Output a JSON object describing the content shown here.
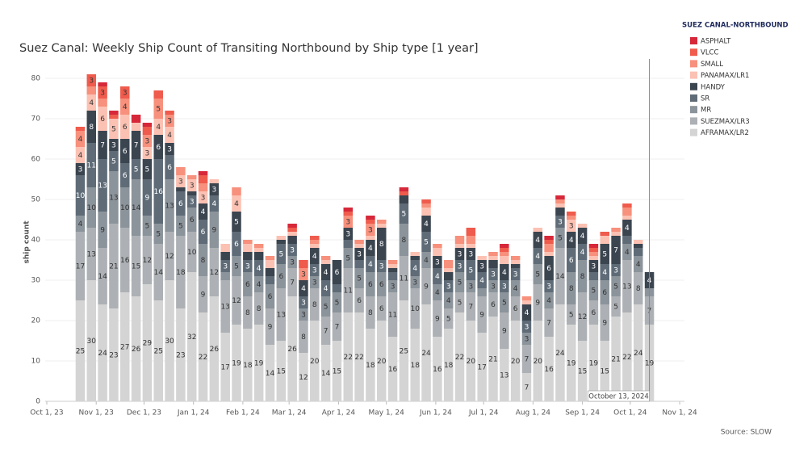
{
  "chart_data": {
    "type": "stacked_bar",
    "title": "Suez Canal: Weekly Ship Count of Transiting Northbound by Ship type [1 year]",
    "y_label": "ship count",
    "legend_title": "SUEZ CANAL-NORTHBOUND",
    "source": "Source: SLOW",
    "legend": "top-right",
    "grid": true,
    "x": [
      "2023-10-22",
      "2023-10-29",
      "2023-11-05",
      "2023-11-12",
      "2023-11-19",
      "2023-11-26",
      "2023-12-03",
      "2023-12-10",
      "2023-12-17",
      "2023-12-24",
      "2023-12-31",
      "2024-01-07",
      "2024-01-14",
      "2024-01-21",
      "2024-01-28",
      "2024-02-04",
      "2024-02-11",
      "2024-02-18",
      "2024-02-25",
      "2024-03-03",
      "2024-03-10",
      "2024-03-17",
      "2024-03-24",
      "2024-03-31",
      "2024-04-07",
      "2024-04-14",
      "2024-04-21",
      "2024-04-28",
      "2024-05-05",
      "2024-05-12",
      "2024-05-19",
      "2024-05-26",
      "2024-06-02",
      "2024-06-09",
      "2024-06-16",
      "2024-06-23",
      "2024-06-30",
      "2024-07-07",
      "2024-07-14",
      "2024-07-21",
      "2024-07-28",
      "2024-08-04",
      "2024-08-11",
      "2024-08-18",
      "2024-08-25",
      "2024-09-01",
      "2024-09-08",
      "2024-09-15",
      "2024-09-22",
      "2024-09-29",
      "2024-10-06",
      "2024-10-13"
    ],
    "series": [
      {
        "name": "ASPHALT",
        "color": "#d62839",
        "values": [
          0,
          0,
          1,
          1,
          0,
          2,
          1,
          0,
          0,
          0,
          0,
          1,
          0,
          0,
          0,
          0,
          0,
          0,
          0,
          1,
          0,
          0,
          0,
          0,
          1,
          0,
          1,
          0,
          0,
          1,
          0,
          0,
          0,
          0,
          0,
          0,
          0,
          0,
          1,
          0,
          0,
          0,
          1,
          1,
          0,
          0,
          1,
          0,
          0,
          0,
          0,
          0
        ]
      },
      {
        "name": "VLCC",
        "color": "#ef5b4c",
        "values": [
          1,
          3,
          3,
          1,
          3,
          0,
          2,
          2,
          1,
          0,
          0,
          2,
          0,
          0,
          0,
          0,
          0,
          0,
          0,
          1,
          2,
          1,
          0,
          0,
          1,
          0,
          1,
          0,
          0,
          1,
          0,
          1,
          0,
          0,
          0,
          2,
          0,
          0,
          1,
          0,
          0,
          0,
          1,
          0,
          1,
          0,
          1,
          1,
          0,
          1,
          0,
          0
        ]
      },
      {
        "name": "SMALL",
        "color": "#f7907c",
        "values": [
          4,
          2,
          2,
          0,
          4,
          0,
          3,
          5,
          3,
          2,
          1,
          2,
          0,
          0,
          2,
          1,
          1,
          1,
          0,
          0,
          3,
          1,
          1,
          0,
          3,
          1,
          3,
          1,
          1,
          0,
          0,
          1,
          1,
          2,
          2,
          2,
          0,
          1,
          1,
          1,
          1,
          0,
          2,
          1,
          1,
          0,
          1,
          0,
          1,
          2,
          0,
          0
        ]
      },
      {
        "name": "PANAMAX/LR1",
        "color": "#fbc1b3",
        "values": [
          4,
          4,
          6,
          5,
          6,
          2,
          3,
          4,
          4,
          3,
          3,
          3,
          1,
          2,
          4,
          2,
          1,
          2,
          1,
          1,
          0,
          1,
          1,
          0,
          0,
          1,
          1,
          1,
          1,
          0,
          1,
          2,
          2,
          1,
          1,
          1,
          1,
          1,
          2,
          1,
          1,
          1,
          1,
          1,
          3,
          1,
          1,
          2,
          1,
          1,
          1,
          0
        ]
      },
      {
        "name": "HANDY",
        "color": "#3b4550",
        "values": [
          3,
          8,
          7,
          3,
          6,
          7,
          5,
          6,
          3,
          1,
          1,
          4,
          3,
          2,
          5,
          2,
          2,
          2,
          1,
          2,
          4,
          4,
          4,
          6,
          3,
          3,
          4,
          8,
          1,
          2,
          1,
          4,
          3,
          2,
          3,
          3,
          3,
          2,
          4,
          1,
          4,
          4,
          6,
          2,
          4,
          4,
          3,
          5,
          7,
          4,
          1,
          4
        ]
      },
      {
        "name": "SR",
        "color": "#5f6c78",
        "values": [
          10,
          11,
          13,
          5,
          6,
          5,
          9,
          16,
          6,
          6,
          3,
          6,
          4,
          3,
          6,
          3,
          4,
          2,
          5,
          3,
          3,
          3,
          4,
          2,
          2,
          2,
          4,
          3,
          2,
          5,
          4,
          5,
          4,
          3,
          3,
          5,
          4,
          3,
          3,
          3,
          3,
          4,
          3,
          3,
          6,
          4,
          2,
          4,
          3,
          2,
          2,
          0
        ]
      },
      {
        "name": "MR",
        "color": "#8c949b",
        "values": [
          4,
          10,
          9,
          13,
          10,
          14,
          5,
          5,
          13,
          5,
          6,
          8,
          9,
          2,
          5,
          6,
          4,
          6,
          6,
          3,
          3,
          3,
          5,
          5,
          5,
          5,
          6,
          6,
          3,
          8,
          3,
          4,
          4,
          4,
          5,
          3,
          2,
          3,
          5,
          4,
          3,
          5,
          4,
          5,
          8,
          8,
          5,
          6,
          5,
          4,
          4,
          2
        ]
      },
      {
        "name": "SUEZMAX/LR3",
        "color": "#adb1b5",
        "values": [
          17,
          13,
          14,
          21,
          16,
          15,
          12,
          14,
          12,
          18,
          10,
          9,
          12,
          13,
          12,
          8,
          8,
          9,
          13,
          7,
          8,
          8,
          7,
          7,
          11,
          6,
          8,
          6,
          11,
          11,
          10,
          9,
          9,
          5,
          5,
          7,
          9,
          6,
          9,
          6,
          7,
          9,
          7,
          14,
          5,
          12,
          6,
          9,
          5,
          13,
          8,
          7
        ]
      },
      {
        "name": "AFRAMAX/LR2",
        "color": "#d4d4d4",
        "values": [
          25,
          30,
          24,
          23,
          27,
          26,
          29,
          25,
          30,
          23,
          32,
          22,
          26,
          17,
          19,
          18,
          19,
          14,
          15,
          26,
          12,
          20,
          14,
          15,
          22,
          22,
          18,
          20,
          16,
          25,
          18,
          24,
          16,
          18,
          22,
          20,
          17,
          21,
          13,
          20,
          7,
          20,
          16,
          24,
          19,
          15,
          19,
          15,
          21,
          22,
          24,
          19
        ]
      }
    ],
    "xlim": [
      "2023-09-30",
      "2024-11-04"
    ],
    "xticks": [
      {
        "value": "2023-10-01",
        "label": "Oct 1, 23"
      },
      {
        "value": "2023-11-01",
        "label": "Nov 1, 23"
      },
      {
        "value": "2023-12-01",
        "label": "Dec 1, 23"
      },
      {
        "value": "2024-01-01",
        "label": "Jan 1, 24"
      },
      {
        "value": "2024-02-01",
        "label": "Feb 1, 24"
      },
      {
        "value": "2024-03-01",
        "label": "Mar 1, 24"
      },
      {
        "value": "2024-04-01",
        "label": "Apr 1, 24"
      },
      {
        "value": "2024-05-01",
        "label": "May 1, 24"
      },
      {
        "value": "2024-06-01",
        "label": "Jun 1, 24"
      },
      {
        "value": "2024-07-01",
        "label": "Jul 1, 24"
      },
      {
        "value": "2024-08-01",
        "label": "Aug 1, 24"
      },
      {
        "value": "2024-09-01",
        "label": "Sep 1, 24"
      },
      {
        "value": "2024-10-01",
        "label": "Oct 1, 24"
      },
      {
        "value": "2024-11-01",
        "label": "Nov 1, 24"
      }
    ],
    "ylim": [
      0,
      82
    ],
    "yticks": [
      0,
      10,
      20,
      30,
      40,
      50,
      60,
      70,
      80
    ],
    "annotations": [
      {
        "x": "2024-10-13",
        "text": "October 13, 2024"
      }
    ]
  }
}
